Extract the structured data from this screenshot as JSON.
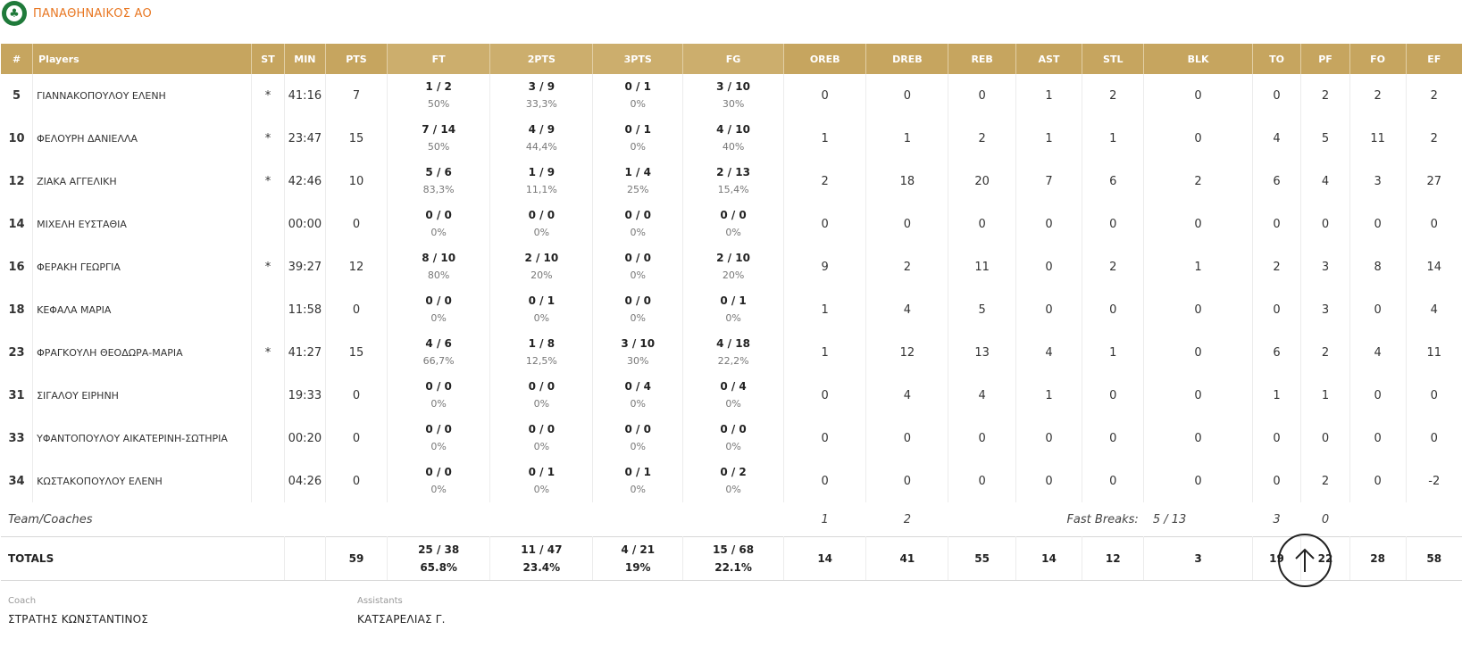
{
  "team": {
    "name": "ΠΑΝΑΘΗΝΑΙΚΟΣ ΑΟ",
    "logo_icon": "panathinaikos-clover-logo",
    "accent_color": "#e87722"
  },
  "columns": {
    "num": "#",
    "players": "Players",
    "st": "ST",
    "min": "MIN",
    "pts": "PTS",
    "ft": "FT",
    "twopts": "2PTS",
    "threepts": "3PTS",
    "fg": "FG",
    "oreb": "OREB",
    "dreb": "DREB",
    "reb": "REB",
    "ast": "AST",
    "stl": "STL",
    "blk": "BLK",
    "to": "TO",
    "pf": "PF",
    "fo": "FO",
    "ef": "EF"
  },
  "players": [
    {
      "num": "5",
      "name": "ΓΙΑΝΝΑΚΟΠΟΥΛΟΥ ΕΛΕΝΗ",
      "st": "*",
      "min": "41:16",
      "pts": "7",
      "ft": "1 / 2",
      "ft_pct": "50%",
      "two": "3 / 9",
      "two_pct": "33,3%",
      "three": "0 / 1",
      "three_pct": "0%",
      "fg": "3 / 10",
      "fg_pct": "30%",
      "oreb": "0",
      "dreb": "0",
      "reb": "0",
      "ast": "1",
      "stl": "2",
      "blk": "0",
      "to": "0",
      "pf": "2",
      "fo": "2",
      "ef": "2"
    },
    {
      "num": "10",
      "name": "ΦΕΛΟΥΡΗ ΔΑΝΙΕΛΛΑ",
      "st": "*",
      "min": "23:47",
      "pts": "15",
      "ft": "7 / 14",
      "ft_pct": "50%",
      "two": "4 / 9",
      "two_pct": "44,4%",
      "three": "0 / 1",
      "three_pct": "0%",
      "fg": "4 / 10",
      "fg_pct": "40%",
      "oreb": "1",
      "dreb": "1",
      "reb": "2",
      "ast": "1",
      "stl": "1",
      "blk": "0",
      "to": "4",
      "pf": "5",
      "fo": "11",
      "ef": "2"
    },
    {
      "num": "12",
      "name": "ΖΙΑΚΑ ΑΓΓΕΛΙΚΗ",
      "st": "*",
      "min": "42:46",
      "pts": "10",
      "ft": "5 / 6",
      "ft_pct": "83,3%",
      "two": "1 / 9",
      "two_pct": "11,1%",
      "three": "1 / 4",
      "three_pct": "25%",
      "fg": "2 / 13",
      "fg_pct": "15,4%",
      "oreb": "2",
      "dreb": "18",
      "reb": "20",
      "ast": "7",
      "stl": "6",
      "blk": "2",
      "to": "6",
      "pf": "4",
      "fo": "3",
      "ef": "27"
    },
    {
      "num": "14",
      "name": "ΜΙΧΕΛΗ ΕΥΣΤΑΘΙΑ",
      "st": "",
      "min": "00:00",
      "pts": "0",
      "ft": "0 / 0",
      "ft_pct": "0%",
      "two": "0 / 0",
      "two_pct": "0%",
      "three": "0 / 0",
      "three_pct": "0%",
      "fg": "0 / 0",
      "fg_pct": "0%",
      "oreb": "0",
      "dreb": "0",
      "reb": "0",
      "ast": "0",
      "stl": "0",
      "blk": "0",
      "to": "0",
      "pf": "0",
      "fo": "0",
      "ef": "0"
    },
    {
      "num": "16",
      "name": "ΦΕΡΑΚΗ ΓΕΩΡΓΙΑ",
      "st": "*",
      "min": "39:27",
      "pts": "12",
      "ft": "8 / 10",
      "ft_pct": "80%",
      "two": "2 / 10",
      "two_pct": "20%",
      "three": "0 / 0",
      "three_pct": "0%",
      "fg": "2 / 10",
      "fg_pct": "20%",
      "oreb": "9",
      "dreb": "2",
      "reb": "11",
      "ast": "0",
      "stl": "2",
      "blk": "1",
      "to": "2",
      "pf": "3",
      "fo": "8",
      "ef": "14"
    },
    {
      "num": "18",
      "name": "ΚΕΦΑΛΑ ΜΑΡΙΑ",
      "st": "",
      "min": "11:58",
      "pts": "0",
      "ft": "0 / 0",
      "ft_pct": "0%",
      "two": "0 / 1",
      "two_pct": "0%",
      "three": "0 / 0",
      "three_pct": "0%",
      "fg": "0 / 1",
      "fg_pct": "0%",
      "oreb": "1",
      "dreb": "4",
      "reb": "5",
      "ast": "0",
      "stl": "0",
      "blk": "0",
      "to": "0",
      "pf": "3",
      "fo": "0",
      "ef": "4"
    },
    {
      "num": "23",
      "name": "ΦΡΑΓΚΟΥΛΗ ΘΕΟΔΩΡΑ-ΜΑΡΙΑ",
      "st": "*",
      "min": "41:27",
      "pts": "15",
      "ft": "4 / 6",
      "ft_pct": "66,7%",
      "two": "1 / 8",
      "two_pct": "12,5%",
      "three": "3 / 10",
      "three_pct": "30%",
      "fg": "4 / 18",
      "fg_pct": "22,2%",
      "oreb": "1",
      "dreb": "12",
      "reb": "13",
      "ast": "4",
      "stl": "1",
      "blk": "0",
      "to": "6",
      "pf": "2",
      "fo": "4",
      "ef": "11"
    },
    {
      "num": "31",
      "name": "ΣΙΓΑΛΟΥ ΕΙΡΗΝΗ",
      "st": "",
      "min": "19:33",
      "pts": "0",
      "ft": "0 / 0",
      "ft_pct": "0%",
      "two": "0 / 0",
      "two_pct": "0%",
      "three": "0 / 4",
      "three_pct": "0%",
      "fg": "0 / 4",
      "fg_pct": "0%",
      "oreb": "0",
      "dreb": "4",
      "reb": "4",
      "ast": "1",
      "stl": "0",
      "blk": "0",
      "to": "1",
      "pf": "1",
      "fo": "0",
      "ef": "0"
    },
    {
      "num": "33",
      "name": "ΥΦΑΝΤΟΠΟΥΛΟΥ ΑΙΚΑΤΕΡΙΝΗ-ΣΩΤΗΡΙΑ",
      "st": "",
      "min": "00:20",
      "pts": "0",
      "ft": "0 / 0",
      "ft_pct": "0%",
      "two": "0 / 0",
      "two_pct": "0%",
      "three": "0 / 0",
      "three_pct": "0%",
      "fg": "0 / 0",
      "fg_pct": "0%",
      "oreb": "0",
      "dreb": "0",
      "reb": "0",
      "ast": "0",
      "stl": "0",
      "blk": "0",
      "to": "0",
      "pf": "0",
      "fo": "0",
      "ef": "0"
    },
    {
      "num": "34",
      "name": "ΚΩΣΤΑΚΟΠΟΥΛΟΥ ΕΛΕΝΗ",
      "st": "",
      "min": "04:26",
      "pts": "0",
      "ft": "0 / 0",
      "ft_pct": "0%",
      "two": "0 / 1",
      "two_pct": "0%",
      "three": "0 / 1",
      "three_pct": "0%",
      "fg": "0 / 2",
      "fg_pct": "0%",
      "oreb": "0",
      "dreb": "0",
      "reb": "0",
      "ast": "0",
      "stl": "0",
      "blk": "0",
      "to": "0",
      "pf": "2",
      "fo": "0",
      "ef": "-2"
    }
  ],
  "team_row": {
    "label": "Team/Coaches",
    "oreb": "1",
    "dreb": "2",
    "fast_breaks_label": "Fast Breaks:",
    "fast_breaks_value": "5 / 13",
    "to": "3",
    "pf": "0"
  },
  "totals": {
    "label": "TOTALS",
    "pts": "59",
    "ft": "25 / 38",
    "ft_pct": "65.8%",
    "two": "11 / 47",
    "two_pct": "23.4%",
    "three": "4 / 21",
    "three_pct": "19%",
    "fg": "15 / 68",
    "fg_pct": "22.1%",
    "oreb": "14",
    "dreb": "41",
    "reb": "55",
    "ast": "14",
    "stl": "12",
    "blk": "3",
    "to": "19",
    "pf": "22",
    "fo": "28",
    "ef": "58"
  },
  "staff": {
    "coach_label": "Coach",
    "coach_name": "ΣΤΡΑΤΗΣ ΚΩΝΣΤΑΝΤΙΝΟΣ",
    "assistants_label": "Assistants",
    "assistants_name": "ΚΑΤΣΑΡΕΛΙΑΣ Γ."
  },
  "scroll_top": {
    "icon": "arrow-up-icon"
  },
  "colors": {
    "header_gold": "#c6a55f",
    "team_orange": "#e87722"
  }
}
